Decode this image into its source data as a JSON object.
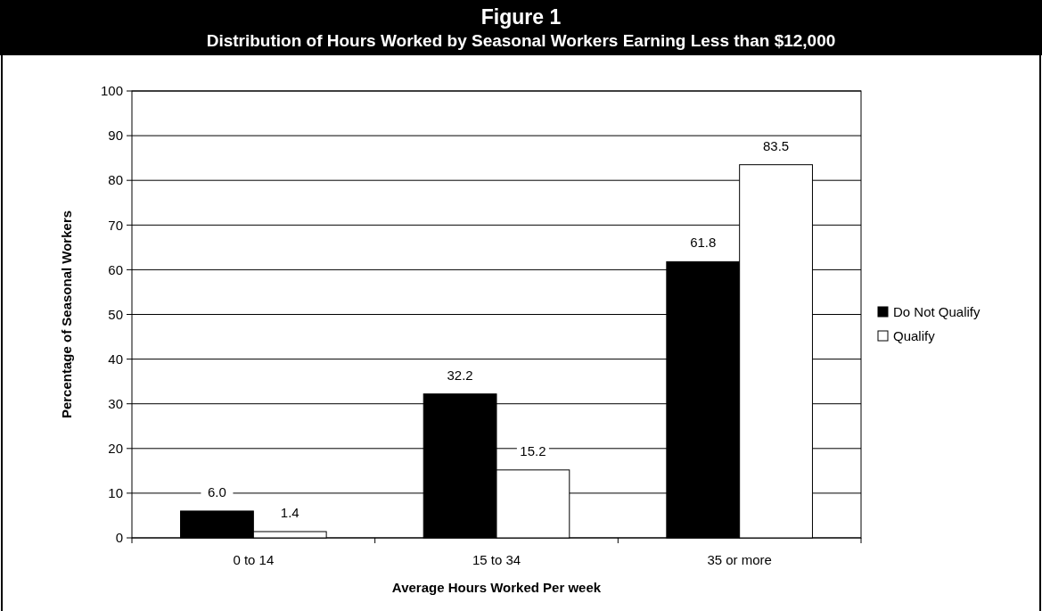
{
  "chart_data": {
    "type": "bar",
    "title": "Figure 1",
    "subtitle": "Distribution of Hours Worked by Seasonal Workers Earning Less than $12,000",
    "xlabel": "Average Hours Worked Per week",
    "ylabel": "Percentage of Seasonal Workers",
    "categories": [
      "0 to 14",
      "15 to 34",
      "35 or more"
    ],
    "series": [
      {
        "name": "Do Not Qualify",
        "color": "#000000",
        "values": [
          6.0,
          32.2,
          61.8
        ],
        "value_labels": [
          "6.0",
          "32.2",
          "61.8"
        ]
      },
      {
        "name": "Qualify",
        "color": "#ffffff",
        "values": [
          1.4,
          15.2,
          83.5
        ],
        "value_labels": [
          "1.4",
          "15.2",
          "83.5"
        ]
      }
    ],
    "ylim": [
      0,
      100
    ],
    "yticks": [
      0,
      10,
      20,
      30,
      40,
      50,
      60,
      70,
      80,
      90,
      100
    ],
    "grid": "y",
    "legend": "right"
  }
}
